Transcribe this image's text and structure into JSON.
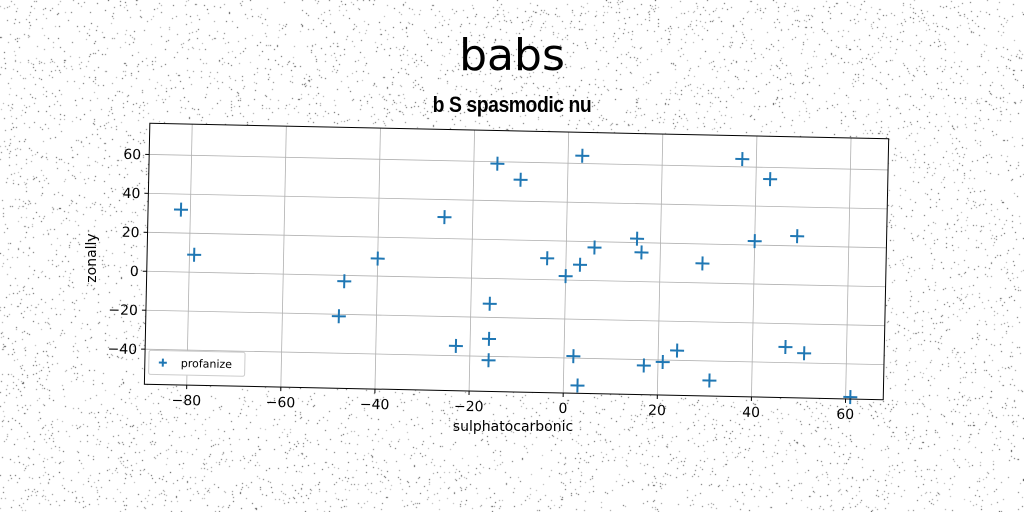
{
  "page": {
    "suptitle": "babs"
  },
  "chart_data": {
    "type": "scatter",
    "title": "b S spasmodic nu",
    "xlabel": "sulphatocarbonic",
    "ylabel": "zonally",
    "xlim": [
      -89,
      68
    ],
    "ylim": [
      -58,
      76
    ],
    "xticks": [
      -80,
      -60,
      -40,
      -20,
      0,
      20,
      40,
      60
    ],
    "yticks": [
      -40,
      -20,
      0,
      20,
      40,
      60
    ],
    "grid": true,
    "legend_position": "lower-left",
    "marker": "+",
    "color": "#1f77b4",
    "series": [
      {
        "name": "profanize",
        "points": [
          {
            "x": -82,
            "y": 32
          },
          {
            "x": -79,
            "y": 9
          },
          {
            "x": -48,
            "y": -21
          },
          {
            "x": -47,
            "y": -3
          },
          {
            "x": -40,
            "y": 9
          },
          {
            "x": -26,
            "y": 31
          },
          {
            "x": -23,
            "y": -35
          },
          {
            "x": -16,
            "y": -13
          },
          {
            "x": -16,
            "y": -31
          },
          {
            "x": -16,
            "y": -42
          },
          {
            "x": -15,
            "y": 59
          },
          {
            "x": -10,
            "y": 51
          },
          {
            "x": -4,
            "y": 11
          },
          {
            "x": 0,
            "y": 2
          },
          {
            "x": 2,
            "y": -39
          },
          {
            "x": 3,
            "y": -54
          },
          {
            "x": 3,
            "y": 8
          },
          {
            "x": 3,
            "y": 64
          },
          {
            "x": 6,
            "y": 17
          },
          {
            "x": 15,
            "y": 22
          },
          {
            "x": 16,
            "y": 15
          },
          {
            "x": 17,
            "y": -43
          },
          {
            "x": 21,
            "y": -41
          },
          {
            "x": 24,
            "y": -35
          },
          {
            "x": 29,
            "y": 10
          },
          {
            "x": 31,
            "y": -50
          },
          {
            "x": 37,
            "y": 64
          },
          {
            "x": 40,
            "y": 22
          },
          {
            "x": 43,
            "y": 54
          },
          {
            "x": 47,
            "y": -32
          },
          {
            "x": 49,
            "y": 25
          },
          {
            "x": 51,
            "y": -35
          },
          {
            "x": 61,
            "y": -57
          }
        ]
      }
    ]
  }
}
